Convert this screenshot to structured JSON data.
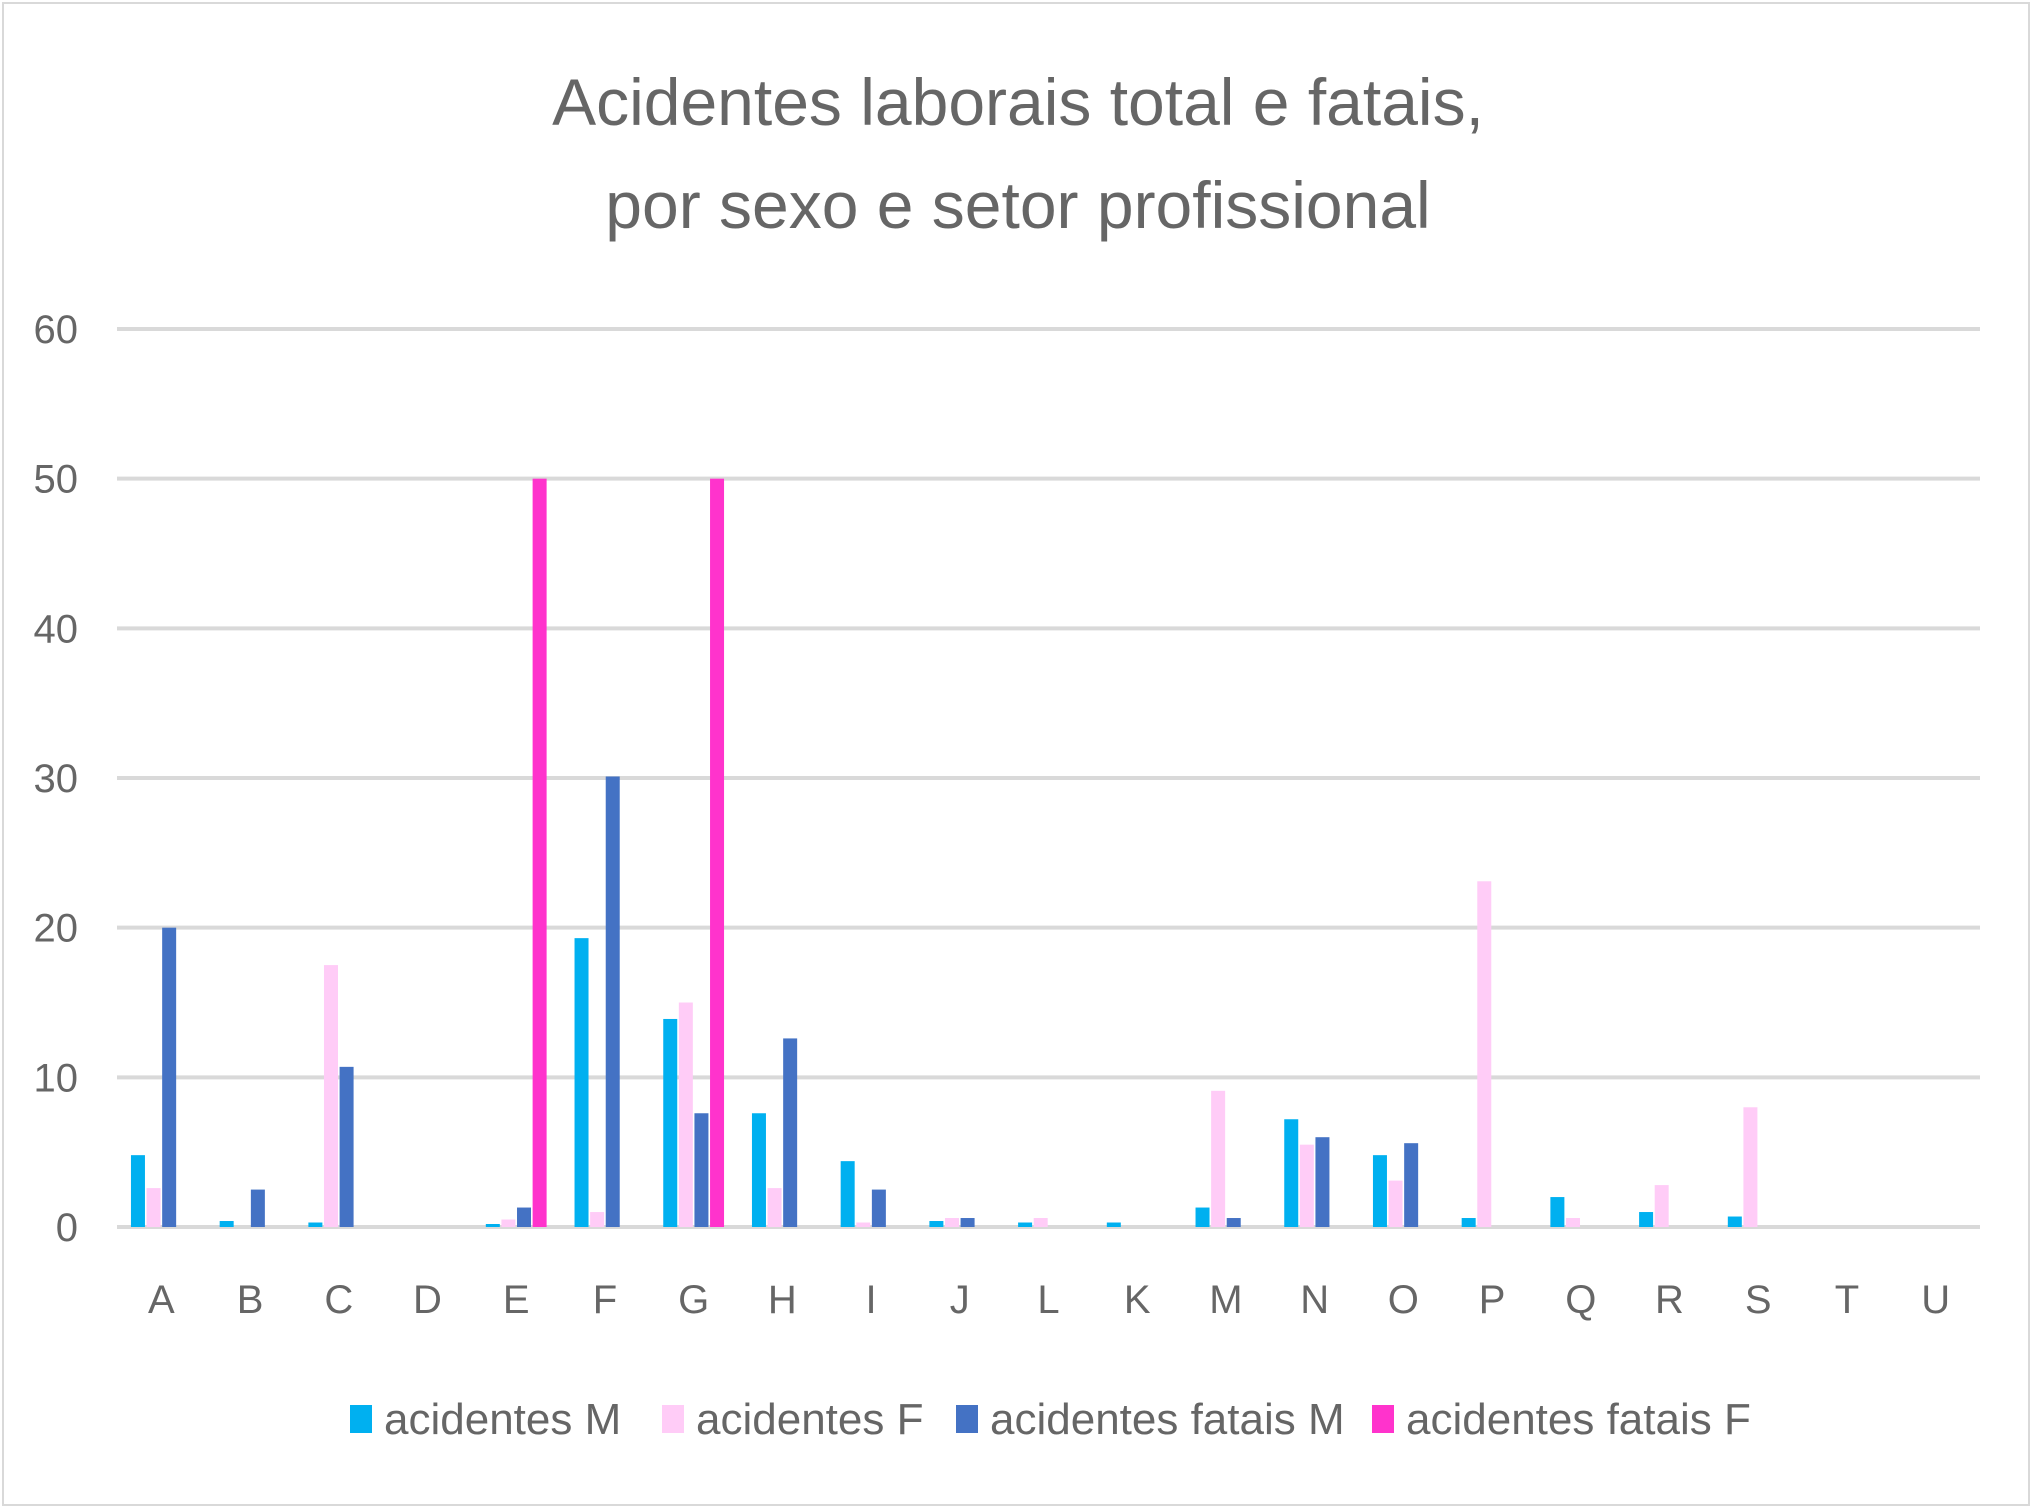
{
  "chart_data": {
    "type": "bar",
    "title": "Acidentes laborais total e fatais,",
    "subtitle": "por sexo e setor profissional",
    "xlabel": "",
    "ylabel": "",
    "ylim": [
      0,
      60
    ],
    "yticks": [
      "0",
      "10",
      "20",
      "30",
      "40",
      "50",
      "60"
    ],
    "grid": true,
    "legend_position": "bottom",
    "categories": [
      "A",
      "B",
      "C",
      "D",
      "E",
      "F",
      "G",
      "H",
      "I",
      "J",
      "L",
      "K",
      "M",
      "N",
      "O",
      "P",
      "Q",
      "R",
      "S",
      "T",
      "U"
    ],
    "series": [
      {
        "name": "acidentes M",
        "color": "#00B0F0",
        "values": [
          4.8,
          0.4,
          0.3,
          0,
          0.2,
          19.3,
          13.9,
          7.6,
          4.4,
          0.4,
          0.3,
          0.3,
          1.3,
          7.2,
          4.8,
          0.6,
          2.0,
          1.0,
          0.7,
          0,
          0
        ]
      },
      {
        "name": "acidentes F",
        "color": "#FFCCF7",
        "values": [
          2.6,
          0,
          17.5,
          0,
          0.5,
          1.0,
          15.0,
          2.6,
          0.3,
          0.6,
          0.6,
          0,
          9.1,
          5.5,
          3.1,
          23.1,
          0.6,
          2.8,
          8.0,
          0,
          0
        ]
      },
      {
        "name": "acidentes fatais M",
        "color": "#4472C4",
        "values": [
          20.0,
          2.5,
          10.7,
          0,
          1.3,
          30.1,
          7.6,
          12.6,
          2.5,
          0.6,
          0,
          0,
          0.6,
          6.0,
          5.6,
          0,
          0,
          0,
          0,
          0,
          0
        ]
      },
      {
        "name": "acidentes fatais F",
        "color": "#FF33CC",
        "values": [
          0,
          0,
          0,
          0,
          50.0,
          0,
          50.0,
          0,
          0,
          0,
          0,
          0,
          0,
          0,
          0,
          0,
          0,
          0,
          0,
          0,
          0
        ]
      }
    ]
  }
}
